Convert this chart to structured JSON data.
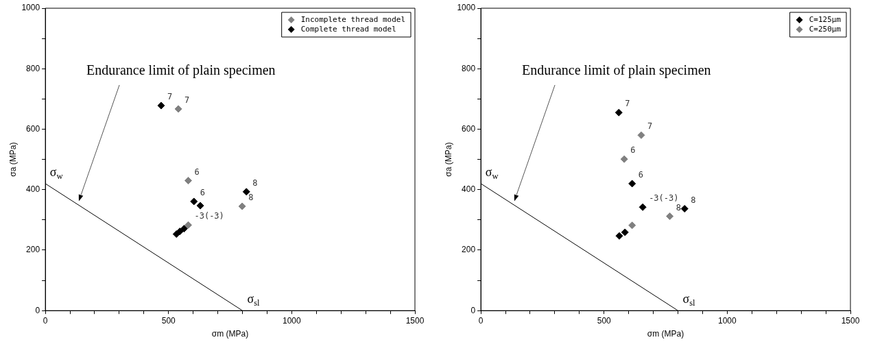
{
  "chart_data": [
    {
      "type": "scatter",
      "xlabel": "σm (MPa)",
      "ylabel": "σa (MPa)",
      "xlim": [
        0,
        1500
      ],
      "ylim": [
        0,
        1000
      ],
      "xticks": [
        0,
        {
          "value": 100,
          "label": null
        },
        {
          "value": 200,
          "label": null
        },
        {
          "value": 300,
          "label": null
        },
        {
          "value": 400,
          "label": null
        },
        500,
        {
          "value": 600,
          "label": null
        },
        {
          "value": 700,
          "label": null
        },
        {
          "value": 800,
          "label": null
        },
        {
          "value": 900,
          "label": null
        },
        1000,
        {
          "value": 1100,
          "label": null
        },
        {
          "value": 1200,
          "label": null
        },
        {
          "value": 1300,
          "label": null
        },
        {
          "value": 1400,
          "label": null
        },
        1500
      ],
      "yticks": [
        0,
        {
          "value": 100,
          "label": null
        },
        200,
        {
          "value": 300,
          "label": null
        },
        400,
        {
          "value": 500,
          "label": null
        },
        600,
        {
          "value": 700,
          "label": null
        },
        800,
        {
          "value": 900,
          "label": null
        },
        1000
      ],
      "grid": false,
      "legend": "top right",
      "series": [
        {
          "name": "Incomplete thread model",
          "color": "#808080",
          "marker": "diamond",
          "x": [
            540,
            580,
            799,
            580
          ],
          "values": [
            667,
            430,
            345,
            283
          ]
        },
        {
          "name": "Complete thread model",
          "color": "#000000",
          "marker": "diamond",
          "x": [
            470,
            603,
            629,
            816,
            532,
            546,
            563
          ],
          "values": [
            678,
            361,
            347,
            393,
            253,
            262,
            271
          ]
        },
        {
          "type": "line",
          "color": "#000000",
          "marker": "none",
          "x": [
            0,
            800
          ],
          "values": [
            420,
            0
          ]
        }
      ],
      "annotations": [
        "Endurance limit of plain specimen",
        {
          "text": "σ$_{w}$",
          "x": 0,
          "y": 420
        },
        {
          "text": "σ$_{sl}$",
          "x": 800,
          "y": 0
        },
        {
          "text": "7",
          "x": 470,
          "y": 678
        },
        {
          "text": "7",
          "x": 540,
          "y": 667
        },
        {
          "text": "6",
          "x": 580,
          "y": 430
        },
        {
          "text": "6",
          "x": 603,
          "y": 361
        },
        {
          "text": "8",
          "x": 816,
          "y": 393
        },
        {
          "text": "8",
          "x": 799,
          "y": 345
        },
        {
          "text": "-3(-3)",
          "x": 580,
          "y": 283
        }
      ]
    },
    {
      "type": "scatter",
      "xlabel": "σm (MPa)",
      "ylabel": "σa (MPa)",
      "xlim": [
        0,
        1500
      ],
      "ylim": [
        0,
        1000
      ],
      "xticks": [
        0,
        {
          "value": 100,
          "label": null
        },
        {
          "value": 200,
          "label": null
        },
        {
          "value": 300,
          "label": null
        },
        {
          "value": 400,
          "label": null
        },
        500,
        {
          "value": 600,
          "label": null
        },
        {
          "value": 700,
          "label": null
        },
        {
          "value": 800,
          "label": null
        },
        {
          "value": 900,
          "label": null
        },
        1000,
        {
          "value": 1100,
          "label": null
        },
        {
          "value": 1200,
          "label": null
        },
        {
          "value": 1300,
          "label": null
        },
        {
          "value": 1400,
          "label": null
        },
        1500
      ],
      "yticks": [
        0,
        {
          "value": 100,
          "label": null
        },
        200,
        {
          "value": 300,
          "label": null
        },
        400,
        {
          "value": 500,
          "label": null
        },
        600,
        {
          "value": 700,
          "label": null
        },
        800,
        {
          "value": 900,
          "label": null
        },
        1000
      ],
      "grid": false,
      "legend": "top right",
      "series": [
        {
          "name": "C=125μm",
          "color": "#000000",
          "marker": "diamond",
          "x": [
            560,
            614,
            657,
            827,
            562,
            585
          ],
          "values": [
            655,
            420,
            342,
            337,
            247,
            259
          ]
        },
        {
          "name": "C=250μm",
          "color": "#808080",
          "marker": "diamond",
          "x": [
            651,
            582,
            767,
            614
          ],
          "values": [
            580,
            501,
            312,
            282
          ]
        },
        {
          "type": "line",
          "color": "#000000",
          "marker": "none",
          "x": [
            0,
            800
          ],
          "values": [
            420,
            0
          ]
        }
      ],
      "annotations": [
        "Endurance limit of plain specimen",
        {
          "text": "σ$_{w}$",
          "x": 0,
          "y": 420
        },
        {
          "text": "σ$_{sl}$",
          "x": 800,
          "y": 0
        },
        {
          "text": "7",
          "x": 560,
          "y": 655
        },
        {
          "text": "7",
          "x": 651,
          "y": 580
        },
        {
          "text": "6",
          "x": 582,
          "y": 501
        },
        {
          "text": "6",
          "x": 614,
          "y": 420
        },
        {
          "text": "-3(-3)",
          "x": 657,
          "y": 342
        },
        {
          "text": "8",
          "x": 827,
          "y": 337
        },
        {
          "text": "8",
          "x": 767,
          "y": 312
        }
      ]
    }
  ]
}
